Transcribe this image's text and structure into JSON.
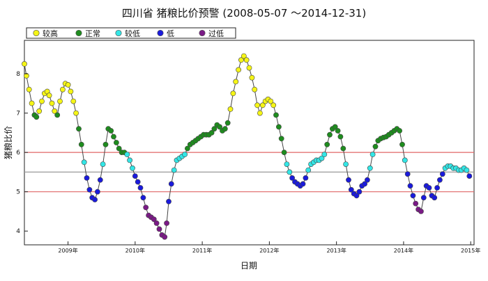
{
  "chart_data": {
    "type": "scatter",
    "title": "四川省 猪粮比价预警  (2008-05-07 ～2014-12-31)",
    "xlabel": "日期",
    "ylabel": "猪粮比价",
    "x_tick_labels": [
      "2009年",
      "2010年",
      "2011年",
      "2012年",
      "2013年",
      "2014年",
      "2015年"
    ],
    "x_tick_values": [
      2009,
      2010,
      2011,
      2012,
      2013,
      2014,
      2015
    ],
    "y_tick_labels": [
      "4",
      "5",
      "6",
      "7",
      "8"
    ],
    "y_tick_values": [
      4,
      5,
      6,
      7,
      8
    ],
    "xlim": [
      2008.35,
      2015.05
    ],
    "ylim": [
      3.65,
      8.85
    ],
    "grid": false,
    "legend_position": "top-left",
    "reference_lines": [
      {
        "y": 6.0,
        "color": "#e06666"
      },
      {
        "y": 5.5,
        "color": "#999999"
      },
      {
        "y": 5.0,
        "color": "#e06666"
      }
    ],
    "connector_color": "#444444",
    "series": [
      {
        "name": "较高",
        "color": "#f5f516"
      },
      {
        "name": "正常",
        "color": "#1e8c1e"
      },
      {
        "name": "较低",
        "color": "#33e6e6"
      },
      {
        "name": "低",
        "color": "#1a1adc"
      },
      {
        "name": "过低",
        "color": "#7a1a86"
      }
    ],
    "points": [
      [
        2008.35,
        8.25
      ],
      [
        2008.38,
        7.95
      ],
      [
        2008.42,
        7.6
      ],
      [
        2008.46,
        7.25
      ],
      [
        2008.5,
        6.95
      ],
      [
        2008.53,
        6.9
      ],
      [
        2008.57,
        7.05
      ],
      [
        2008.61,
        7.3
      ],
      [
        2008.65,
        7.5
      ],
      [
        2008.69,
        7.55
      ],
      [
        2008.72,
        7.45
      ],
      [
        2008.76,
        7.25
      ],
      [
        2008.8,
        7.05
      ],
      [
        2008.84,
        6.95
      ],
      [
        2008.88,
        7.3
      ],
      [
        2008.92,
        7.6
      ],
      [
        2008.96,
        7.75
      ],
      [
        2009.0,
        7.72
      ],
      [
        2009.04,
        7.55
      ],
      [
        2009.08,
        7.3
      ],
      [
        2009.12,
        7.0
      ],
      [
        2009.16,
        6.6
      ],
      [
        2009.2,
        6.2
      ],
      [
        2009.24,
        5.75
      ],
      [
        2009.28,
        5.35
      ],
      [
        2009.32,
        5.05
      ],
      [
        2009.36,
        4.85
      ],
      [
        2009.4,
        4.8
      ],
      [
        2009.44,
        5.0
      ],
      [
        2009.48,
        5.3
      ],
      [
        2009.52,
        5.7
      ],
      [
        2009.56,
        6.2
      ],
      [
        2009.6,
        6.6
      ],
      [
        2009.64,
        6.55
      ],
      [
        2009.68,
        6.4
      ],
      [
        2009.72,
        6.25
      ],
      [
        2009.76,
        6.1
      ],
      [
        2009.8,
        6.0
      ],
      [
        2009.84,
        6.0
      ],
      [
        2009.88,
        5.95
      ],
      [
        2009.92,
        5.8
      ],
      [
        2009.96,
        5.6
      ],
      [
        2010.0,
        5.4
      ],
      [
        2010.04,
        5.25
      ],
      [
        2010.08,
        5.1
      ],
      [
        2010.12,
        4.85
      ],
      [
        2010.16,
        4.6
      ],
      [
        2010.2,
        4.4
      ],
      [
        2010.24,
        4.35
      ],
      [
        2010.28,
        4.3
      ],
      [
        2010.32,
        4.2
      ],
      [
        2010.36,
        4.05
      ],
      [
        2010.4,
        3.9
      ],
      [
        2010.44,
        3.85
      ],
      [
        2010.47,
        4.2
      ],
      [
        2010.5,
        4.75
      ],
      [
        2010.54,
        5.2
      ],
      [
        2010.58,
        5.55
      ],
      [
        2010.62,
        5.8
      ],
      [
        2010.66,
        5.85
      ],
      [
        2010.7,
        5.9
      ],
      [
        2010.74,
        5.95
      ],
      [
        2010.78,
        6.1
      ],
      [
        2010.82,
        6.2
      ],
      [
        2010.86,
        6.25
      ],
      [
        2010.9,
        6.3
      ],
      [
        2010.94,
        6.35
      ],
      [
        2010.98,
        6.4
      ],
      [
        2011.02,
        6.45
      ],
      [
        2011.06,
        6.45
      ],
      [
        2011.1,
        6.45
      ],
      [
        2011.14,
        6.5
      ],
      [
        2011.18,
        6.6
      ],
      [
        2011.22,
        6.7
      ],
      [
        2011.26,
        6.65
      ],
      [
        2011.3,
        6.55
      ],
      [
        2011.34,
        6.6
      ],
      [
        2011.38,
        6.75
      ],
      [
        2011.42,
        7.1
      ],
      [
        2011.46,
        7.5
      ],
      [
        2011.5,
        7.8
      ],
      [
        2011.54,
        8.1
      ],
      [
        2011.58,
        8.35
      ],
      [
        2011.62,
        8.45
      ],
      [
        2011.66,
        8.35
      ],
      [
        2011.7,
        8.15
      ],
      [
        2011.74,
        7.9
      ],
      [
        2011.78,
        7.6
      ],
      [
        2011.82,
        7.2
      ],
      [
        2011.86,
        7.0
      ],
      [
        2011.9,
        7.2
      ],
      [
        2011.94,
        7.3
      ],
      [
        2011.98,
        7.35
      ],
      [
        2012.02,
        7.3
      ],
      [
        2012.06,
        7.2
      ],
      [
        2012.1,
        6.95
      ],
      [
        2012.14,
        6.65
      ],
      [
        2012.18,
        6.35
      ],
      [
        2012.22,
        6.0
      ],
      [
        2012.26,
        5.7
      ],
      [
        2012.3,
        5.5
      ],
      [
        2012.34,
        5.35
      ],
      [
        2012.38,
        5.25
      ],
      [
        2012.42,
        5.2
      ],
      [
        2012.46,
        5.15
      ],
      [
        2012.5,
        5.2
      ],
      [
        2012.54,
        5.35
      ],
      [
        2012.58,
        5.55
      ],
      [
        2012.62,
        5.7
      ],
      [
        2012.66,
        5.75
      ],
      [
        2012.7,
        5.8
      ],
      [
        2012.74,
        5.8
      ],
      [
        2012.78,
        5.85
      ],
      [
        2012.82,
        5.95
      ],
      [
        2012.86,
        6.2
      ],
      [
        2012.9,
        6.45
      ],
      [
        2012.94,
        6.6
      ],
      [
        2012.98,
        6.65
      ],
      [
        2013.02,
        6.55
      ],
      [
        2013.06,
        6.4
      ],
      [
        2013.1,
        6.1
      ],
      [
        2013.14,
        5.7
      ],
      [
        2013.18,
        5.3
      ],
      [
        2013.22,
        5.05
      ],
      [
        2013.26,
        4.95
      ],
      [
        2013.3,
        4.9
      ],
      [
        2013.34,
        5.0
      ],
      [
        2013.38,
        5.15
      ],
      [
        2013.42,
        5.2
      ],
      [
        2013.46,
        5.3
      ],
      [
        2013.5,
        5.6
      ],
      [
        2013.54,
        5.95
      ],
      [
        2013.58,
        6.15
      ],
      [
        2013.62,
        6.3
      ],
      [
        2013.66,
        6.35
      ],
      [
        2013.7,
        6.38
      ],
      [
        2013.74,
        6.4
      ],
      [
        2013.78,
        6.45
      ],
      [
        2013.82,
        6.5
      ],
      [
        2013.86,
        6.55
      ],
      [
        2013.9,
        6.6
      ],
      [
        2013.94,
        6.55
      ],
      [
        2013.98,
        6.2
      ],
      [
        2014.02,
        5.8
      ],
      [
        2014.06,
        5.45
      ],
      [
        2014.1,
        5.15
      ],
      [
        2014.14,
        4.9
      ],
      [
        2014.18,
        4.7
      ],
      [
        2014.22,
        4.55
      ],
      [
        2014.26,
        4.5
      ],
      [
        2014.3,
        4.85
      ],
      [
        2014.34,
        5.15
      ],
      [
        2014.38,
        5.1
      ],
      [
        2014.42,
        4.9
      ],
      [
        2014.46,
        4.85
      ],
      [
        2014.5,
        5.1
      ],
      [
        2014.54,
        5.3
      ],
      [
        2014.58,
        5.45
      ],
      [
        2014.62,
        5.6
      ],
      [
        2014.66,
        5.65
      ],
      [
        2014.7,
        5.65
      ],
      [
        2014.74,
        5.6
      ],
      [
        2014.78,
        5.6
      ],
      [
        2014.82,
        5.55
      ],
      [
        2014.86,
        5.55
      ],
      [
        2014.9,
        5.6
      ],
      [
        2014.94,
        5.55
      ],
      [
        2014.98,
        5.4
      ]
    ]
  }
}
